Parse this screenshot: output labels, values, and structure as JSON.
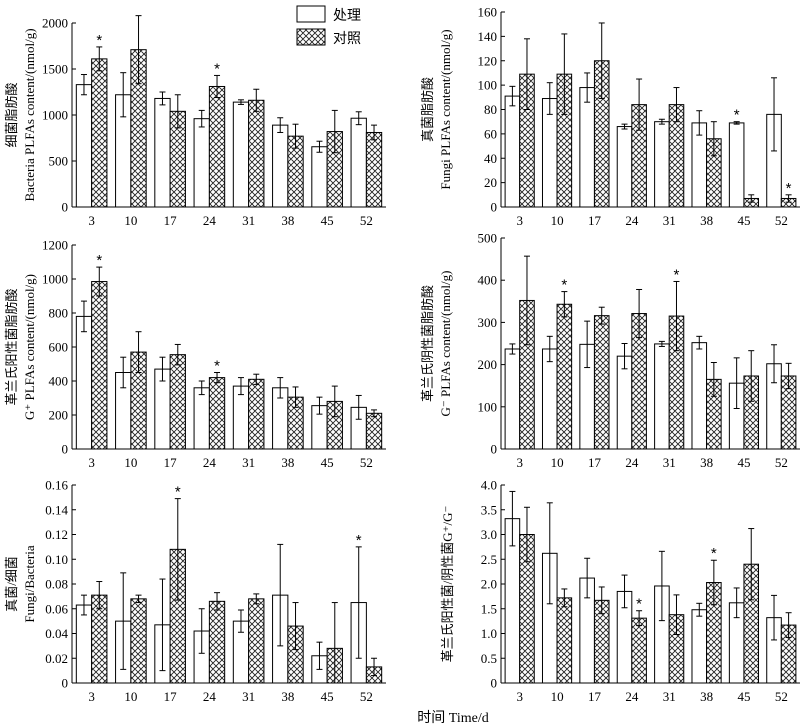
{
  "x_axis_label": "时间 Time/d",
  "legend": [
    {
      "label": "处理",
      "pattern": "open"
    },
    {
      "label": "对照",
      "pattern": "crosshatch"
    }
  ],
  "chart_data": [
    {
      "type": "bar",
      "ylabel": [
        "细菌脂肪酸",
        "Bacteria PLFAs content/(nmol/g)"
      ],
      "categories": [
        "3",
        "10",
        "17",
        "24",
        "31",
        "38",
        "45",
        "52"
      ],
      "ylim": [
        0,
        2000
      ],
      "yticks": [
        0,
        500,
        1000,
        1500,
        2000
      ],
      "tick_labels": [
        "0",
        "500",
        "1000",
        "1500",
        "2000"
      ],
      "series": [
        {
          "name": "处理",
          "values": [
            1330,
            1220,
            1180,
            960,
            1140,
            890,
            655,
            965
          ],
          "errors": [
            110,
            240,
            70,
            90,
            25,
            80,
            60,
            70
          ]
        },
        {
          "name": "对照",
          "values": [
            1610,
            1710,
            1040,
            1310,
            1160,
            770,
            820,
            810
          ],
          "errors": [
            130,
            370,
            180,
            120,
            120,
            130,
            230,
            80
          ]
        }
      ],
      "stars": [
        {
          "category": 0,
          "series": 1
        },
        {
          "category": 3,
          "series": 1
        }
      ]
    },
    {
      "type": "bar",
      "ylabel": [
        "真菌脂肪酸",
        "Fungi PLFAs content/(nmol/g)"
      ],
      "categories": [
        "3",
        "10",
        "17",
        "24",
        "31",
        "38",
        "45",
        "52"
      ],
      "ylim": [
        0,
        160
      ],
      "yticks": [
        0,
        20,
        40,
        60,
        80,
        100,
        120,
        140,
        160
      ],
      "tick_labels": [
        "0",
        "20",
        "40",
        "60",
        "80",
        "100",
        "120",
        "140",
        "160"
      ],
      "series": [
        {
          "name": "处理",
          "values": [
            91,
            89,
            98,
            66,
            70,
            69,
            69,
            76
          ],
          "errors": [
            8,
            13,
            12,
            2,
            2,
            10,
            1,
            30
          ]
        },
        {
          "name": "对照",
          "values": [
            109,
            109,
            120,
            84,
            84,
            56,
            7,
            7
          ],
          "errors": [
            29,
            33,
            31,
            21,
            14,
            14,
            3,
            3
          ]
        }
      ],
      "stars": [
        {
          "category": 6,
          "series": 0
        },
        {
          "category": 7,
          "series": 1
        }
      ]
    },
    {
      "type": "bar",
      "ylabel": [
        "革兰氏阳性菌脂肪酸",
        "G⁺ PLFAs content/(nmol/g)"
      ],
      "categories": [
        "3",
        "10",
        "17",
        "24",
        "31",
        "38",
        "45",
        "52"
      ],
      "ylim": [
        0,
        1200
      ],
      "yticks": [
        0,
        200,
        400,
        600,
        800,
        1000,
        1200
      ],
      "tick_labels": [
        "0",
        "200",
        "400",
        "600",
        "800",
        "1000",
        "1200"
      ],
      "series": [
        {
          "name": "处理",
          "values": [
            780,
            450,
            470,
            360,
            370,
            360,
            255,
            245
          ],
          "errors": [
            90,
            90,
            70,
            40,
            50,
            60,
            50,
            70
          ]
        },
        {
          "name": "对照",
          "values": [
            985,
            570,
            555,
            420,
            410,
            305,
            280,
            210
          ],
          "errors": [
            85,
            120,
            60,
            30,
            30,
            60,
            90,
            20
          ]
        }
      ],
      "stars": [
        {
          "category": 0,
          "series": 1
        },
        {
          "category": 3,
          "series": 1
        }
      ]
    },
    {
      "type": "bar",
      "ylabel": [
        "革兰氏阴性菌脂肪酸",
        "G⁻ PLFAs content/(nmol/g)"
      ],
      "categories": [
        "3",
        "10",
        "17",
        "24",
        "31",
        "38",
        "45",
        "52"
      ],
      "ylim": [
        0,
        500
      ],
      "yticks": [
        0,
        100,
        200,
        300,
        400,
        500
      ],
      "tick_labels": [
        "0",
        "100",
        "200",
        "300",
        "400",
        "500"
      ],
      "series": [
        {
          "name": "处理",
          "values": [
            237,
            237,
            248,
            220,
            249,
            252,
            156,
            202
          ],
          "errors": [
            12,
            30,
            55,
            30,
            6,
            15,
            60,
            45
          ]
        },
        {
          "name": "对照",
          "values": [
            352,
            343,
            316,
            321,
            315,
            165,
            173,
            173
          ],
          "errors": [
            105,
            30,
            20,
            57,
            82,
            40,
            60,
            30
          ]
        }
      ],
      "stars": [
        {
          "category": 1,
          "series": 1
        },
        {
          "category": 4,
          "series": 1
        }
      ]
    },
    {
      "type": "bar",
      "ylabel": [
        "真菌/细菌",
        "Fungi/Bacteria"
      ],
      "categories": [
        "3",
        "10",
        "17",
        "24",
        "31",
        "38",
        "45",
        "52"
      ],
      "ylim": [
        0,
        0.16
      ],
      "yticks": [
        0,
        0.02,
        0.04,
        0.06,
        0.08,
        0.1,
        0.12,
        0.14,
        0.16
      ],
      "tick_labels": [
        "0",
        "0.02",
        "0.04",
        "0.06",
        "0.08",
        "0.10",
        "0.12",
        "0.14",
        "0.16"
      ],
      "series": [
        {
          "name": "处理",
          "values": [
            0.063,
            0.05,
            0.047,
            0.042,
            0.05,
            0.071,
            0.022,
            0.065
          ],
          "errors": [
            0.008,
            0.039,
            0.037,
            0.018,
            0.009,
            0.041,
            0.011,
            0.045
          ]
        },
        {
          "name": "对照",
          "values": [
            0.071,
            0.068,
            0.108,
            0.066,
            0.068,
            0.046,
            0.028,
            0.013
          ],
          "errors": [
            0.011,
            0.003,
            0.041,
            0.007,
            0.004,
            0.019,
            0.037,
            0.007
          ]
        }
      ],
      "stars": [
        {
          "category": 2,
          "series": 1
        },
        {
          "category": 7,
          "series": 0
        }
      ]
    },
    {
      "type": "bar",
      "ylabel": [
        "革兰氏阳性菌/阴性菌G⁺/G⁻"
      ],
      "categories": [
        "3",
        "10",
        "17",
        "24",
        "31",
        "38",
        "45",
        "52"
      ],
      "ylim": [
        0,
        4.0
      ],
      "yticks": [
        0,
        0.5,
        1.0,
        1.5,
        2.0,
        2.5,
        3.0,
        3.5,
        4.0
      ],
      "tick_labels": [
        "0",
        "0.5",
        "1.0",
        "1.5",
        "2.0",
        "2.5",
        "3.0",
        "3.5",
        "4.0"
      ],
      "series": [
        {
          "name": "处理",
          "values": [
            3.32,
            2.62,
            2.12,
            1.85,
            1.96,
            1.48,
            1.62,
            1.32
          ],
          "errors": [
            0.55,
            1.02,
            0.4,
            0.33,
            0.7,
            0.13,
            0.3,
            0.45
          ]
        },
        {
          "name": "对照",
          "values": [
            3.0,
            1.72,
            1.67,
            1.31,
            1.38,
            2.03,
            2.4,
            1.17
          ],
          "errors": [
            0.55,
            0.18,
            0.27,
            0.15,
            0.4,
            0.45,
            0.72,
            0.25
          ]
        }
      ],
      "stars": [
        {
          "category": 3,
          "series": 1
        },
        {
          "category": 5,
          "series": 1
        }
      ]
    }
  ]
}
